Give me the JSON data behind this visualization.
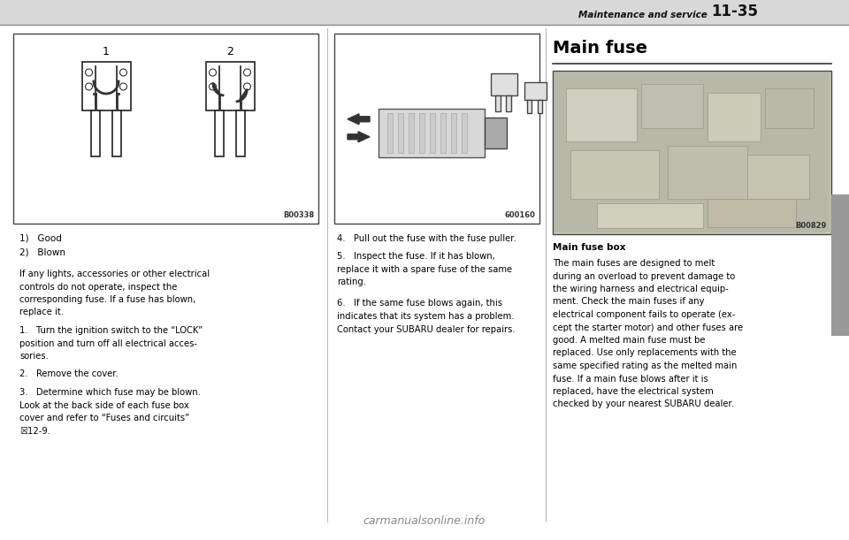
{
  "page_width": 9.6,
  "page_height": 6.11,
  "bg_color": "#ffffff",
  "header_text": "Maintenance and service",
  "header_page": "11-35",
  "img1_label": "B00338",
  "img2_label": "600160",
  "img3_label": "B00829",
  "img3_caption": "Main fuse box",
  "section_title": "Main fuse",
  "caption_good": "1)   Good",
  "caption_blown": "2)   Blown",
  "body1": "If any lights, accessories or other electrical\ncontrols do not operate, inspect the\ncorresponding fuse. If a fuse has blown,\nreplace it.",
  "body1b": "1.   Turn the ignition switch to the “LOCK”\nposition and turn off all electrical acces-\nsories.",
  "body1c": "2.   Remove the cover.",
  "body1d": "3.   Determine which fuse may be blown.\nLook at the back side of each fuse box\ncover and refer to “Fuses and circuits”\n☒12-9.",
  "body2a": "4.   Pull out the fuse with the fuse puller.",
  "body2b": "5.   Inspect the fuse. If it has blown,\nreplace it with a spare fuse of the same\nrating.",
  "body2c": "6.   If the same fuse blows again, this\nindicates that its system has a problem.\nContact your SUBARU dealer for repairs.",
  "body3": "The main fuses are designed to melt\nduring an overload to prevent damage to\nthe wiring harness and electrical equip-\nment. Check the main fuses if any\nelectrical component fails to operate (ex-\ncept the starter motor) and other fuses are\ngood. A melted main fuse must be\nreplaced. Use only replacements with the\nsame specified rating as the melted main\nfuse. If a main fuse blows after it is\nreplaced, have the electrical system\nchecked by your nearest SUBARU dealer.",
  "watermark": "carmanualsonline.info"
}
